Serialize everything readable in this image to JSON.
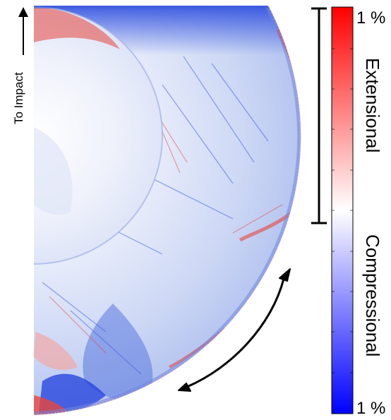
{
  "labels": {
    "to_impact": "To Impact",
    "extensional": "Extensional",
    "compressional": "Compressional",
    "scale_top": "1 %",
    "scale_bottom": "1 %"
  },
  "colorbar": {
    "top_color": "#ff0000",
    "middle_color": "#ffffff",
    "bottom_color": "#0000ff"
  },
  "colors": {
    "extension_red": "#e8463c",
    "compression_blue": "#2e55d8",
    "core_pale": "#eef1fb",
    "mantle_pale_blue": "#c7d3f3"
  }
}
